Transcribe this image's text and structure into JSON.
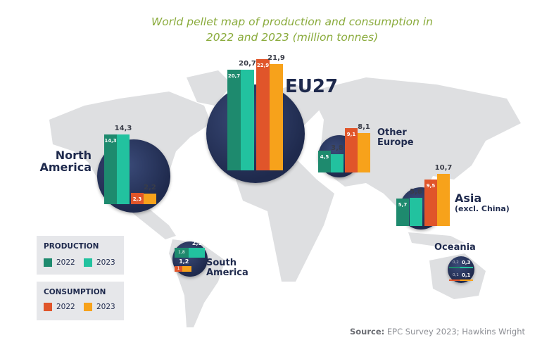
{
  "title_line1": "World pellet map of production and consumption in",
  "title_line2": "2022 and 2023 (million tonnes)",
  "colors": {
    "production_2022": "#1e8a6e",
    "production_2023": "#22c29f",
    "consumption_2022": "#e0552a",
    "consumption_2023": "#f7a21b",
    "circle": "#1f2a4d",
    "title": "#8aab3c"
  },
  "legend": {
    "production": {
      "title": "PRODUCTION",
      "y2022": "2022",
      "y2023": "2023"
    },
    "consumption": {
      "title": "CONSUMPTION",
      "y2022": "2022",
      "y2023": "2023"
    }
  },
  "source_label": "Source:",
  "source_text": "EPC Survey 2023; Hawkins Wright",
  "chart_data": {
    "type": "bar",
    "title": "World pellet map of production and consumption in 2022 and 2023 (million tonnes)",
    "unit": "million tonnes",
    "series": [
      "Production 2022",
      "Production 2023",
      "Consumption 2022",
      "Consumption 2023"
    ],
    "regions": [
      {
        "name": "North America",
        "label1": "North",
        "label2": "America",
        "production_2022": 14.3,
        "production_2023": 14.3,
        "consumption_2022": 2.3,
        "consumption_2023": 2.2,
        "labels": {
          "p22": "14,3",
          "p23": "14,3",
          "c22": "2,3",
          "c23": "2,2"
        }
      },
      {
        "name": "EU27",
        "label1": "EU27",
        "label2": "",
        "production_2022": 20.7,
        "production_2023": 20.7,
        "consumption_2022": 22.9,
        "consumption_2023": 21.9,
        "labels": {
          "p22": "20,7",
          "p23": "20,7",
          "c22": "22,9",
          "c23": "21,9"
        }
      },
      {
        "name": "Other Europe",
        "label1": "Other",
        "label2": "Europe",
        "production_2022": 4.5,
        "production_2023": 3.8,
        "consumption_2022": 9.1,
        "consumption_2023": 8.1,
        "labels": {
          "p22": "4,5",
          "p23": "3,8",
          "c22": "9,1",
          "c23": "8,1"
        }
      },
      {
        "name": "Asia (excl. China)",
        "label1": "Asia",
        "label2": "(excl. China)",
        "production_2022": 5.7,
        "production_2023": 5.8,
        "consumption_2022": 9.5,
        "consumption_2023": 10.7,
        "labels": {
          "p22": "5,7",
          "p23": "5,8",
          "c22": "9,5",
          "c23": "10,7"
        }
      },
      {
        "name": "South America",
        "label1": "South",
        "label2": "America",
        "production_2022": 1.8,
        "production_2023": 2.1,
        "consumption_2022": 1.0,
        "consumption_2023": 1.2,
        "labels": {
          "p22": "1,8",
          "p23": "2,1",
          "c22": "1",
          "c23": "1,2"
        }
      },
      {
        "name": "Oceania",
        "label1": "Oceania",
        "label2": "",
        "production_2022": 0.2,
        "production_2023": 0.3,
        "consumption_2022": 0.1,
        "consumption_2023": 0.1,
        "labels": {
          "p22": "0,2",
          "p23": "0,3",
          "c22": "0,1",
          "c23": "0,1"
        }
      }
    ]
  }
}
